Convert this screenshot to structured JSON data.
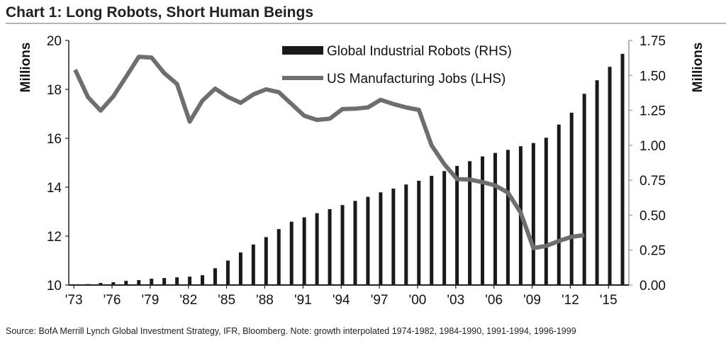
{
  "chart_data": {
    "type": "bar+line",
    "title": "Chart 1: Long Robots, Short Human Beings",
    "source": "Source: BofA Merrill Lynch Global Investment Strategy, IFR, Bloomberg. Note: growth interpolated 1974-1982, 1984-1990, 1991-1994, 1996-1999",
    "ylabel_left": "Millions",
    "ylabel_right": "Millions",
    "ylim_left": [
      10,
      20
    ],
    "ylim_right": [
      0,
      1.75
    ],
    "yticks_left": [
      "10",
      "12",
      "14",
      "16",
      "18",
      "20"
    ],
    "yticks_right": [
      "0.00",
      "0.25",
      "0.50",
      "0.75",
      "1.00",
      "1.25",
      "1.50",
      "1.75"
    ],
    "xticks": [
      "'73",
      "'76",
      "'79",
      "'82",
      "'85",
      "'88",
      "'91",
      "'94",
      "'97",
      "'00",
      "'03",
      "'06",
      "'09",
      "'12",
      "'15"
    ],
    "legend_position": "top-right",
    "x": [
      1973,
      1974,
      1975,
      1976,
      1977,
      1978,
      1979,
      1980,
      1981,
      1982,
      1983,
      1984,
      1985,
      1986,
      1987,
      1988,
      1989,
      1990,
      1991,
      1992,
      1993,
      1994,
      1995,
      1996,
      1997,
      1998,
      1999,
      2000,
      2001,
      2002,
      2003,
      2004,
      2005,
      2006,
      2007,
      2008,
      2009,
      2010,
      2011,
      2012,
      2013,
      2014,
      2015,
      2016
    ],
    "series": [
      {
        "name": "Global Industrial Robots (RHS)",
        "type": "bar",
        "axis": "right",
        "color": "#1a1a1a",
        "values": [
          0.003,
          0.007,
          0.015,
          0.02,
          0.03,
          0.035,
          0.045,
          0.05,
          0.055,
          0.06,
          0.07,
          0.12,
          0.175,
          0.233,
          0.29,
          0.343,
          0.4,
          0.453,
          0.484,
          0.514,
          0.543,
          0.572,
          0.602,
          0.631,
          0.663,
          0.69,
          0.719,
          0.746,
          0.781,
          0.815,
          0.852,
          0.886,
          0.92,
          0.945,
          0.967,
          0.993,
          1.016,
          1.054,
          1.148,
          1.233,
          1.368,
          1.465,
          1.561,
          1.654
        ]
      },
      {
        "name": "US Manufacturing Jobs (LHS)",
        "type": "line",
        "axis": "left",
        "color": "#6e6e6e",
        "values": [
          18.8,
          17.69,
          17.13,
          17.71,
          18.51,
          19.33,
          19.3,
          18.66,
          18.22,
          16.68,
          17.54,
          18.03,
          17.69,
          17.45,
          17.79,
          18.0,
          17.88,
          17.4,
          16.92,
          16.75,
          16.8,
          17.19,
          17.21,
          17.26,
          17.57,
          17.4,
          17.26,
          17.16,
          15.71,
          14.94,
          14.33,
          14.31,
          14.21,
          14.07,
          13.78,
          12.96,
          11.51,
          11.6,
          11.8,
          11.97,
          12.04,
          null,
          null,
          null
        ]
      }
    ]
  }
}
